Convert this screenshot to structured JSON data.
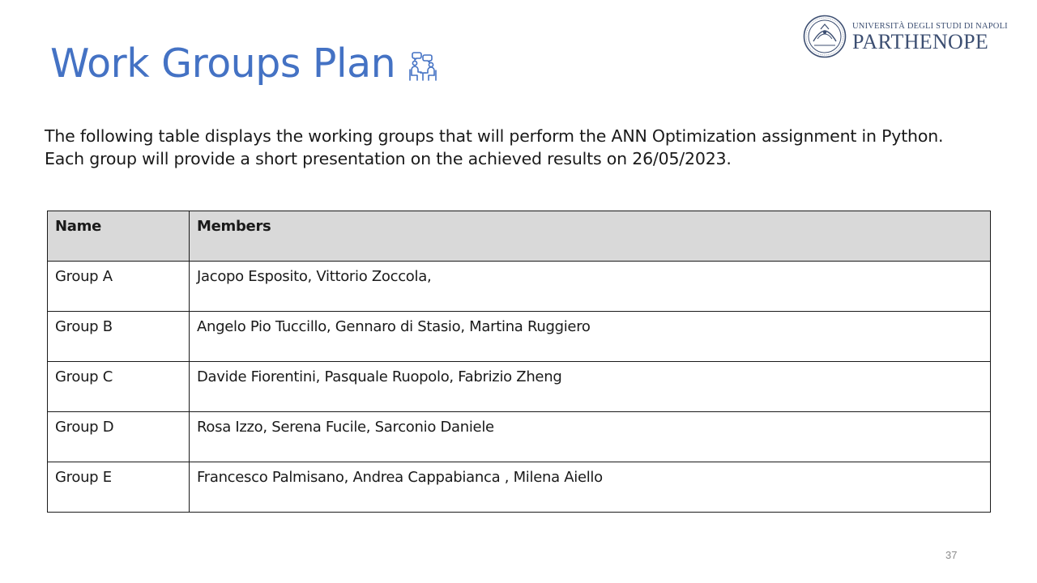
{
  "slide": {
    "title": "Work Groups Plan",
    "title_icon": "group-discussion-icon",
    "page_number": "37",
    "accent_color": "#4472c4"
  },
  "logo": {
    "line1": "UNIVERSITÀ DEGLI STUDI DI NAPOLI",
    "line2": "PARTHENOPE",
    "seal_icon": "university-seal-icon"
  },
  "intro": {
    "line1": "The following table displays the working groups that will perform the ANN Optimization assignment in Python.",
    "line2": "Each group will provide a short presentation on the achieved results on 26/05/2023."
  },
  "table": {
    "headers": [
      "Name",
      "Members"
    ],
    "rows": [
      {
        "name": "Group A",
        "members": "Jacopo Esposito, Vittorio Zoccola,"
      },
      {
        "name": "Group B",
        "members": "Angelo Pio Tuccillo, Gennaro di Stasio, Martina Ruggiero"
      },
      {
        "name": "Group C",
        "members": "Davide Fiorentini, Pasquale Ruopolo, Fabrizio Zheng"
      },
      {
        "name": "Group D",
        "members": "Rosa Izzo, Serena Fucile, Sarconio Daniele"
      },
      {
        "name": "Group E",
        "members": "Francesco Palmisano, Andrea Cappabianca , Milena Aiello"
      }
    ]
  }
}
